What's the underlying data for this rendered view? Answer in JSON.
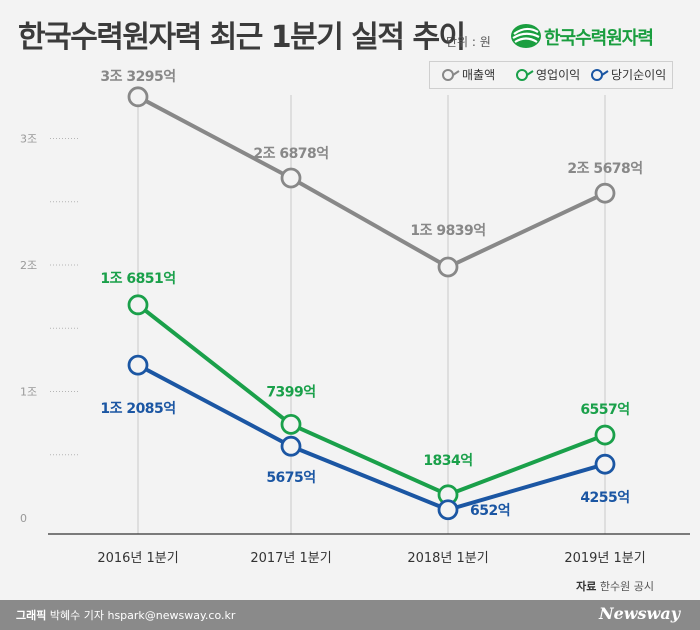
{
  "header": {
    "title": "한국수력원자력 최근 1분기 실적 추이",
    "unit": "단위 : 원",
    "logo_text": "한국수력원자력"
  },
  "colors": {
    "revenue": "#888888",
    "operating_profit": "#1aa04a",
    "net_income": "#1b56a3",
    "logo": "#1a9e3f"
  },
  "chart_data": {
    "type": "line",
    "title": "한국수력원자력 최근 1분기 실적 추이",
    "unit": "단위 : 원",
    "categories": [
      "2016년 1분기",
      "2017년 1분기",
      "2018년 1분기",
      "2019년 1분기"
    ],
    "y_ticks": [
      "0",
      "1조",
      "2조",
      "3조"
    ],
    "ylim": [
      0,
      3.5
    ],
    "y_unit_label": "조",
    "grid": true,
    "legend_position": "top-right",
    "series": [
      {
        "name": "매출액",
        "color": "#888888",
        "values": [
          3.3295,
          2.6878,
          1.9839,
          2.5678
        ],
        "labels": [
          "3조 3295억",
          "2조 6878억",
          "1조 9839억",
          "2조 5678억"
        ]
      },
      {
        "name": "영업이익",
        "color": "#1aa04a",
        "values": [
          1.6851,
          0.7399,
          0.1834,
          0.6557
        ],
        "labels": [
          "1조 6851억",
          "7399억",
          "1834억",
          "6557억"
        ]
      },
      {
        "name": "당기순이익",
        "color": "#1b56a3",
        "values": [
          1.2085,
          0.5675,
          0.0652,
          0.4255
        ],
        "labels": [
          "1조 2085억",
          "5675억",
          "652억",
          "4255억"
        ]
      }
    ]
  },
  "source": {
    "label": "자료",
    "text": "한수원 공시"
  },
  "footer": {
    "graphic_label": "그래픽",
    "credit_text": "박혜수 기자 hspark@newsway.co.kr",
    "brand": "Newsway"
  }
}
